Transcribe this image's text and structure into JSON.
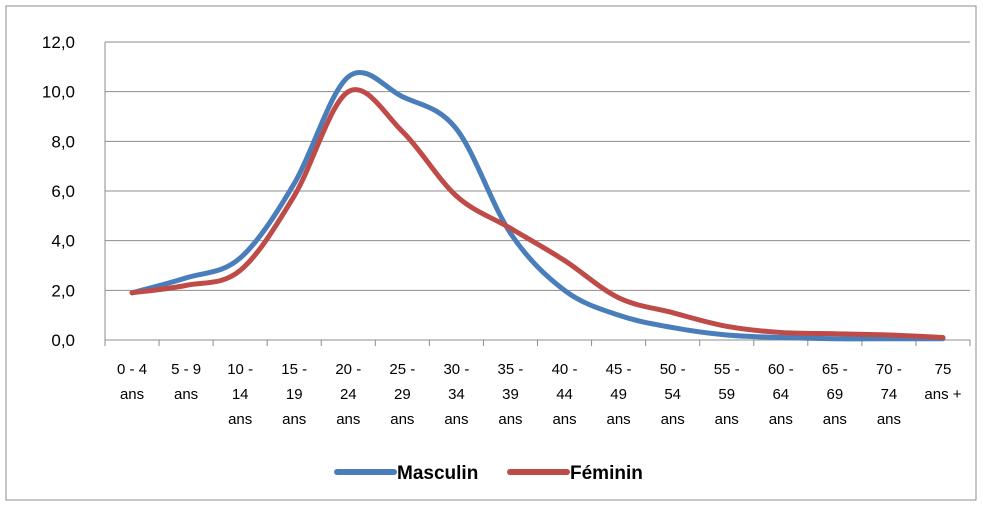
{
  "chart_data": {
    "type": "line",
    "title": "",
    "xlabel": "",
    "ylabel": "",
    "categories": [
      [
        "0 - 4",
        "ans"
      ],
      [
        "5 - 9",
        "ans"
      ],
      [
        "10 -",
        "14",
        "ans"
      ],
      [
        "15 -",
        "19",
        "ans"
      ],
      [
        "20 -",
        "24",
        "ans"
      ],
      [
        "25 -",
        "29",
        "ans"
      ],
      [
        "30 -",
        "34",
        "ans"
      ],
      [
        "35 -",
        "39",
        "ans"
      ],
      [
        "40 -",
        "44",
        "ans"
      ],
      [
        "45 -",
        "49",
        "ans"
      ],
      [
        "50 -",
        "54",
        "ans"
      ],
      [
        "55 -",
        "59",
        "ans"
      ],
      [
        "60 -",
        "64",
        "ans"
      ],
      [
        "65 -",
        "69",
        "ans"
      ],
      [
        "70 -",
        "74",
        "ans"
      ],
      [
        "75",
        "ans +"
      ]
    ],
    "ylim": [
      0,
      12
    ],
    "y_ticks": [
      "0,0",
      "2,0",
      "4,0",
      "6,0",
      "8,0",
      "10,0",
      "12,0"
    ],
    "grid": true,
    "smooth": true,
    "legend_position": "bottom",
    "series": [
      {
        "name": "Masculin",
        "color": "#4a7ebb",
        "values": [
          1.9,
          2.5,
          3.3,
          6.3,
          10.6,
          9.8,
          8.5,
          4.3,
          2.0,
          1.0,
          0.5,
          0.2,
          0.1,
          0.05,
          0.05,
          0.05
        ]
      },
      {
        "name": "Féminin",
        "color": "#be4b48",
        "values": [
          1.9,
          2.2,
          2.8,
          5.8,
          10.0,
          8.4,
          5.8,
          4.5,
          3.2,
          1.7,
          1.1,
          0.55,
          0.3,
          0.25,
          0.2,
          0.1
        ]
      }
    ]
  }
}
